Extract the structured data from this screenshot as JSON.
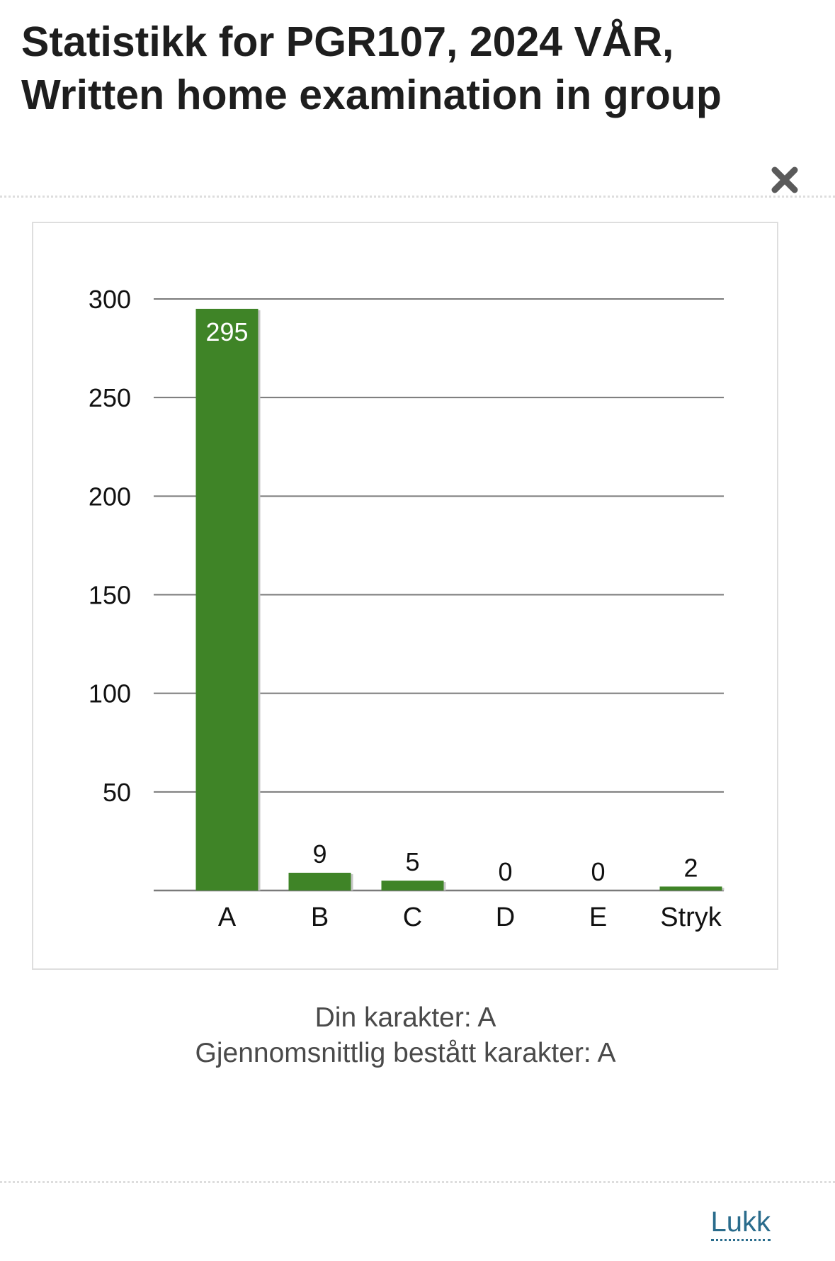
{
  "dialog": {
    "title_line1": "Statistikk for PGR107, 2024 VÅR,",
    "title_line2": "Written home examination in group",
    "close_icon": "close-icon",
    "close_link_label": "Lukk"
  },
  "summary": {
    "own_grade": "Din karakter: A",
    "average_grade": "Gjennomsnittlig bestått karakter: A"
  },
  "colors": {
    "bar": "#3f8427",
    "bar_shadow": "#c6c6c6",
    "grid": "#7a7a7a",
    "link": "#2a6c8c"
  },
  "chart_data": {
    "type": "bar",
    "categories": [
      "A",
      "B",
      "C",
      "D",
      "E",
      "Stryk"
    ],
    "values": [
      295,
      9,
      5,
      0,
      0,
      2
    ],
    "data_labels": [
      "295",
      "9",
      "5",
      "0",
      "0",
      "2"
    ],
    "y_ticks": [
      "50",
      "100",
      "150",
      "200",
      "250",
      "300"
    ],
    "ylim": [
      0,
      300
    ],
    "grid": true,
    "legend": "none"
  }
}
